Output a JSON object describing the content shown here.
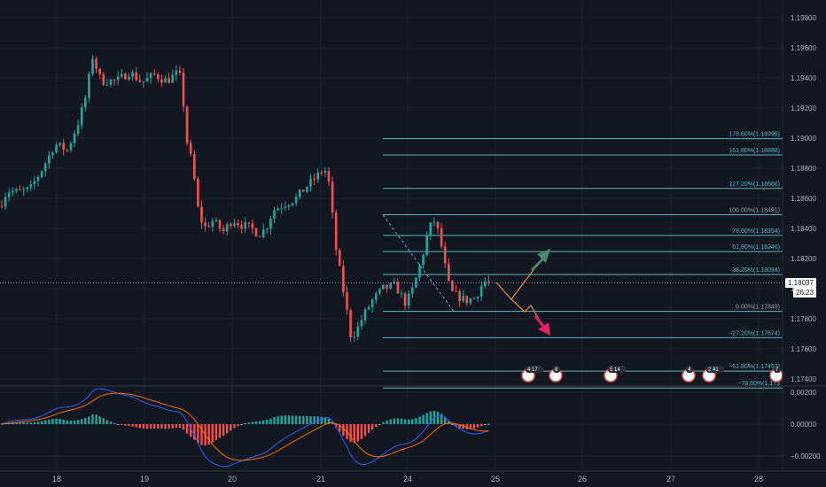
{
  "chart_data": {
    "type": "candlestick",
    "symbol_interval_note": "",
    "x_labels": [
      "18",
      "19",
      "20",
      "21",
      "24",
      "25",
      "26",
      "27",
      "28"
    ],
    "y_ticks": [
      "1.19800",
      "1.19600",
      "1.19400",
      "1.19200",
      "1.19000",
      "1.18800",
      "1.18600",
      "1.18400",
      "1.18200",
      "1.18000",
      "1.17800",
      "1.17600",
      "1.17400"
    ],
    "ylim": [
      1.1733,
      1.1995
    ],
    "current_price": "1.18037",
    "current_price_value": 1.18037,
    "countdown": "26:23",
    "colors": {
      "up": "#26a69a",
      "down": "#ef5350",
      "background": "#131722",
      "fib": "#5db7c2",
      "arrow_up": "#4a8a6a",
      "arrow_down": "#e0245e",
      "projection": "#f08a3c"
    },
    "fibonacci": [
      {
        "label": "178.60%(1.18996)",
        "value": 1.18996
      },
      {
        "label": "161.80%(1.18888)",
        "value": 1.18888
      },
      {
        "label": "127.20%(1.18666)",
        "value": 1.18666
      },
      {
        "label": "100.00%(1.18491)",
        "value": 1.18491
      },
      {
        "label": "78.60%(1.18354)",
        "value": 1.18354
      },
      {
        "label": "61.80%(1.18246)",
        "value": 1.18246
      },
      {
        "label": "38.20%(1.18094)",
        "value": 1.18094
      },
      {
        "label": "0.00%(1.17849)",
        "value": 1.17849
      },
      {
        "label": "−27.20%(1.17674)",
        "value": 1.17674
      },
      {
        "label": "−61.80%(1.17452)",
        "value": 1.17452
      },
      {
        "label": "−78.60%(1.173",
        "value": 1.1734
      }
    ],
    "events": [
      "4 17",
      "8",
      "5 14",
      "4",
      "2 41",
      "7"
    ],
    "macd": {
      "y_ticks": [
        "0.00200",
        "0.00000",
        "−0.00200"
      ],
      "ylim": [
        -0.0026,
        0.0026
      ]
    }
  }
}
